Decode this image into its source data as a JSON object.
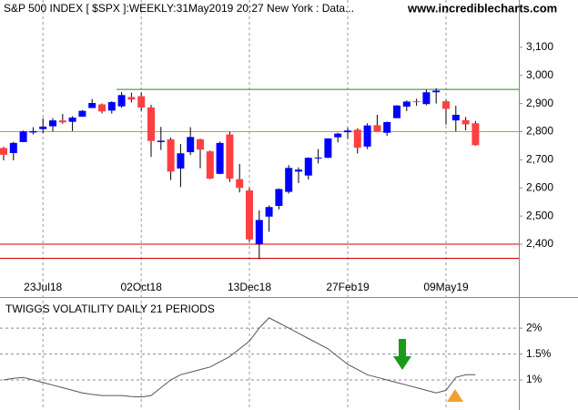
{
  "chart_data": [
    {
      "type": "candlestick",
      "title": "S&P 500 INDEX [ $SPX ]:WEEKLY:31May2019 20:27 New York : Data...",
      "subtitle": "www.incrediblecharts.com",
      "categories": [
        null,
        null,
        null,
        null,
        "23Jul18",
        null,
        null,
        null,
        null,
        null,
        null,
        null,
        null,
        null,
        "02Oct18",
        null,
        null,
        null,
        null,
        null,
        null,
        null,
        null,
        null,
        null,
        "13Dec18",
        null,
        null,
        null,
        null,
        null,
        null,
        null,
        null,
        null,
        "27Feb19",
        null,
        null,
        null,
        null,
        null,
        null,
        null,
        null,
        null,
        "09May19",
        null,
        null,
        null
      ],
      "open": [
        2742,
        2724,
        2763,
        2797,
        2809,
        2819,
        2840,
        2835,
        2853,
        2884,
        2897,
        2875,
        2890,
        2923,
        2926,
        2886,
        2763,
        2773,
        2669,
        2727,
        2773,
        2730,
        2650,
        2790,
        2631,
        2591,
        2400,
        2498,
        2536,
        2586,
        2658,
        2644,
        2706,
        2707,
        2780,
        2798,
        2807,
        2747,
        2823,
        2796,
        2848,
        2889,
        2908,
        2898,
        2940,
        2908,
        2840,
        2841,
        2830
      ],
      "high": [
        2746,
        2764,
        2804,
        2816,
        2848,
        2848,
        2863,
        2855,
        2877,
        2916,
        2900,
        2908,
        2941,
        2939,
        2940,
        2895,
        2817,
        2779,
        2756,
        2816,
        2775,
        2733,
        2765,
        2800,
        2685,
        2601,
        2520,
        2538,
        2598,
        2681,
        2673,
        2709,
        2738,
        2776,
        2796,
        2814,
        2812,
        2830,
        2860,
        2836,
        2894,
        2911,
        2917,
        2949,
        2954,
        2913,
        2892,
        2852,
        2838
      ],
      "low": [
        2698,
        2698,
        2763,
        2790,
        2795,
        2801,
        2828,
        2802,
        2853,
        2884,
        2865,
        2864,
        2885,
        2904,
        2874,
        2710,
        2735,
        2628,
        2603,
        2717,
        2670,
        2631,
        2649,
        2621,
        2584,
        2409,
        2347,
        2444,
        2524,
        2580,
        2617,
        2630,
        2687,
        2706,
        2762,
        2775,
        2722,
        2738,
        2800,
        2785,
        2848,
        2873,
        2892,
        2894,
        2900,
        2825,
        2801,
        2805,
        2750
      ],
      "close": [
        2718,
        2760,
        2801,
        2802,
        2818,
        2840,
        2833,
        2850,
        2874,
        2902,
        2872,
        2905,
        2930,
        2914,
        2886,
        2767,
        2768,
        2658,
        2723,
        2781,
        2736,
        2633,
        2760,
        2633,
        2600,
        2417,
        2486,
        2532,
        2596,
        2671,
        2665,
        2707,
        2708,
        2776,
        2793,
        2804,
        2743,
        2822,
        2801,
        2834,
        2893,
        2907,
        2905,
        2940,
        2946,
        2881,
        2860,
        2826,
        2752
      ],
      "up_color": "#0000ff",
      "down_color": "#ff4040",
      "ylim": [
        2264,
        3268
      ],
      "yticks": [
        {
          "value": 2400,
          "label": "2,400"
        },
        {
          "value": 2500,
          "label": "2,500"
        },
        {
          "value": 2600,
          "label": "2,600"
        },
        {
          "value": 2700,
          "label": "2,700"
        },
        {
          "value": 2800,
          "label": "2,800"
        },
        {
          "value": 2900,
          "label": "2,900"
        },
        {
          "value": 3000,
          "label": "3,000"
        },
        {
          "value": 3100,
          "label": "3,100"
        }
      ],
      "hlines": [
        {
          "value": 2950,
          "color": "#2e8b2e"
        },
        {
          "value": 2800,
          "color": "#f08a24"
        },
        {
          "value": 2400,
          "color": "#cc0000"
        },
        {
          "value": 2350,
          "color": "#cc0000"
        }
      ]
    },
    {
      "type": "line",
      "title": "TWIGGS VOLATILITY DAILY 21 PERIODS",
      "values": [
        1.0,
        1.03,
        1.05,
        1.0,
        0.95,
        0.9,
        0.85,
        0.8,
        0.75,
        0.72,
        0.7,
        0.7,
        0.7,
        0.68,
        0.67,
        0.7,
        0.85,
        1.0,
        1.1,
        1.15,
        1.2,
        1.25,
        1.35,
        1.45,
        1.6,
        1.75,
        2.0,
        2.2,
        2.1,
        2.0,
        1.9,
        1.8,
        1.7,
        1.6,
        1.45,
        1.3,
        1.2,
        1.1,
        1.05,
        1.0,
        0.95,
        0.9,
        0.85,
        0.8,
        0.75,
        0.8,
        1.05,
        1.1,
        1.1
      ],
      "color": "#555555",
      "ylim": [
        0.42,
        2.53
      ],
      "yticks": [
        {
          "value": 2,
          "label": "2%"
        },
        {
          "value": 1.5,
          "label": "1.5%"
        },
        {
          "value": 1,
          "label": "1%"
        }
      ]
    }
  ]
}
